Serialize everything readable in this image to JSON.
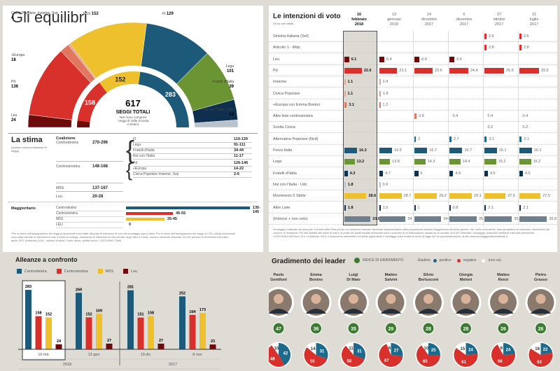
{
  "colors": {
    "fi": "#1d5a7a",
    "lega": "#6b9432",
    "fdi": "#0f2f4f",
    "noi": "#b8c2cc",
    "m5s": "#efc02e",
    "pd": "#d8302a",
    "europa": "#e0775e",
    "civica": "#eaa089",
    "leu": "#6e0a0a",
    "indecisi": "#6f7f8c",
    "green": "#3f7a34",
    "positive": "#1e6a8c",
    "negative": "#d8302a"
  },
  "hemicycle": {
    "title": "Gli equilibri",
    "total": "617",
    "total_label": "SEGGI TOTALI",
    "total_note_1": "Non sono compresi",
    "total_note_2": "i seggi di Valle d'Aosta",
    "total_note_3": "e Estero",
    "outer_labels": [
      {
        "name": "Civica Popolare, Insieme, Svp",
        "value": "4"
      },
      {
        "name": "+Europa",
        "value": "18"
      },
      {
        "name": "Pd",
        "value": "136"
      },
      {
        "name": "Leu",
        "value": "24"
      },
      {
        "name": "M5S",
        "value": "152"
      },
      {
        "name": "FI",
        "value": "129"
      },
      {
        "name": "Lega",
        "value": "101"
      },
      {
        "name": "Fratelli d'Italia",
        "value": "39"
      },
      {
        "name": "Noi con l'Italia - Udc",
        "value": "14"
      }
    ],
    "inner_labels": {
      "centrosinistra": "158",
      "m5s": "152",
      "centrodestra": "283"
    }
  },
  "stima": {
    "title": "La stima",
    "subtitle": "(numero minimo-massimo di seggi)",
    "coalizione_label": "Coalizione",
    "rows": [
      {
        "label": "Centrodestra",
        "range": "270-296",
        "parties": [
          {
            "name": "FI",
            "range": "119-139"
          },
          {
            "name": "Lega",
            "range": "91-111"
          },
          {
            "name": "Fratelli d'Italia",
            "range": "34-44"
          },
          {
            "name": "Noi con l'Italia",
            "range": "11-17"
          }
        ]
      },
      {
        "label": "Centrosinistra",
        "range": "148-168",
        "parties": [
          {
            "name": "Pd",
            "range": "126-146"
          },
          {
            "name": "+Europa",
            "range": "14-22"
          },
          {
            "name": "Civica Popolare Insieme, Svp",
            "range": "2-6"
          }
        ]
      },
      {
        "label": "M5S",
        "range": "137-167",
        "parties": []
      },
      {
        "label": "Leu",
        "range": "20-28",
        "parties": []
      }
    ],
    "maggioritario_label": "Maggioritario",
    "maggioritario": [
      {
        "label": "Centrodestra",
        "range": "135-145",
        "min": 135,
        "max": 145
      },
      {
        "label": "Centrosinistra",
        "range": "45-55",
        "min": 45,
        "max": 55
      },
      {
        "label": "M5S",
        "range": "35-45",
        "min": 35,
        "max": 45
      },
      {
        "label": "LEU",
        "range": "0",
        "min": 0,
        "max": 0
      }
    ],
    "footnote": "*Per la stima dell'assegnazione dei seggi proporzionali sono state utilizzate le intenzioni di voto del sondaggio sopra citato. Per le stime dell'assegnazione dei seggi nei 231 collegi uninominali sono state stimate le intenzioni di voto a livello di collegio, utilizzando le intenzioni di voto rilevate negli ultimi 10 mesi, numero interviste utilizzate: 50.000 periodo di riferimento interviste: aprile 2017 a febbraio 2018 - metodo di stima. Fonte: Ipsos, analisi autori - CATICANIC CAWI"
  },
  "chart_data": [
    {
      "type": "table",
      "title": "Le intenzioni di voto",
      "subtitle": "(% su voti validi)",
      "columns": [
        {
          "d": "16",
          "m": "febbraio",
          "y": "2018"
        },
        {
          "d": "13",
          "m": "gennaio",
          "y": "2018"
        },
        {
          "d": "14",
          "m": "dicembre",
          "y": "2017"
        },
        {
          "d": "6",
          "m": "dicembre",
          "y": "2017"
        },
        {
          "d": "27",
          "m": "ottobre",
          "y": "2017"
        },
        {
          "d": "21",
          "m": "luglio",
          "y": "2017"
        }
      ],
      "rows": [
        {
          "label": "Sinistra Italiana (SeI)",
          "color": "pd",
          "values": [
            null,
            null,
            null,
            null,
            2.6,
            2.6
          ]
        },
        {
          "label": "Articolo 1 - Mdp",
          "color": "pd",
          "values": [
            null,
            null,
            null,
            null,
            2.8,
            2.8
          ]
        },
        {
          "label": "Leu",
          "color": "leu",
          "values": [
            6.1,
            6.4,
            6.6,
            6.6,
            null,
            null
          ]
        },
        {
          "label": "Pd",
          "color": "pd",
          "values": [
            22.6,
            23.1,
            23.6,
            24.4,
            25.5,
            25.5
          ]
        },
        {
          "label": "Insieme",
          "color": "civica",
          "values": [
            1.1,
            1.4,
            null,
            null,
            null,
            null
          ]
        },
        {
          "label": "Civica Popolare",
          "color": "civica",
          "values": [
            1.1,
            1.8,
            null,
            null,
            null,
            null
          ]
        },
        {
          "label": "+Europa con Emma Bonino",
          "color": "europa",
          "values": [
            3.1,
            1.2,
            null,
            null,
            null,
            null
          ]
        },
        {
          "label": "Altre liste centrosinistra",
          "color": "europa",
          "values": [
            null,
            null,
            2.8,
            0.4,
            0.4,
            0.4
          ]
        },
        {
          "label": "Scelta Civica",
          "color": "europa",
          "values": [
            null,
            null,
            null,
            null,
            0.2,
            0.2
          ]
        },
        {
          "label": "Alternativa Popolare (Ncd)",
          "color": "positive",
          "values": [
            null,
            null,
            2.0,
            2.7,
            3.1,
            3.1
          ]
        },
        {
          "label": "Forza Italia",
          "color": "fi",
          "values": [
            16.3,
            16.5,
            16.7,
            16.7,
            16.1,
            16.1
          ]
        },
        {
          "label": "Lega",
          "color": "lega",
          "values": [
            13.2,
            13.8,
            14.3,
            14.4,
            15.2,
            15.2
          ]
        },
        {
          "label": "Fratelli d'Italia",
          "color": "fdi",
          "values": [
            4.3,
            4.7,
            5,
            4.9,
            4.5,
            4.5
          ]
        },
        {
          "label": "Noi con l'Italia - Udc",
          "color": "noi",
          "values": [
            1.8,
            0.9,
            null,
            null,
            null,
            null
          ]
        },
        {
          "label": "Movimento 5 Stelle",
          "color": "m5s",
          "values": [
            28.6,
            28.7,
            29.2,
            29.1,
            27.5,
            27.5
          ]
        },
        {
          "label": "Altre Liste",
          "color": "fdi",
          "values": [
            1.8,
            1.5,
            1,
            0.8,
            2.1,
            2.1
          ]
        },
        {
          "label": "(Indecisi + non voto)",
          "color": "indecisi",
          "values": [
            33.8,
            34,
            34.9,
            35.3,
            35.8,
            35.8
          ]
        }
      ],
      "footnote": "Sondaggio realizzato da Ipsos per Corriere della Sera presso un campione casuale nazionale rappresentativo della popolazione italiana maggiorenne secondo genere, età, livello di scolarità, area geografica di residenza, dimensione del comune di residenza. Per tutti stabiliti alle stime di voto e ai profili dei partiti risultati presentati sono il prodotto di un'elaborazione basata su un archivio di 8.007 interviste. Sondaggio realizzato mediante interviste telefoniche CATI/CAWI/CAMI tra il 13 e 14 febbraio 2018. Il documento informativo completo riguardante il sondaggio sarà inviato ai sensi di legge per la sua pubblicazione, al sito www.sondaggipoliticoelettorali.it."
    },
    {
      "type": "bar",
      "title": "Alleanze a confronto",
      "categories": [
        "16 feb",
        "13 gen",
        "19 dic",
        "8 nov"
      ],
      "year_groups": [
        {
          "label": "2018",
          "span": 2
        },
        {
          "label": "2017",
          "span": 2
        }
      ],
      "series": [
        {
          "name": "Centrodestra",
          "color": "fi",
          "values": [
            283,
            269,
            281,
            252
          ]
        },
        {
          "name": "Centrosinistra",
          "color": "pd",
          "values": [
            158,
            152,
            151,
            164
          ]
        },
        {
          "name": "M5S",
          "color": "m5s",
          "values": [
            152,
            169,
            158,
            173
          ]
        },
        {
          "name": "Leu",
          "color": "leu",
          "values": [
            24,
            27,
            27,
            23
          ]
        }
      ],
      "highlight": "16 feb",
      "ylim": [
        0,
        300
      ]
    },
    {
      "type": "pie",
      "title": "Gradimento dei leader",
      "legend": {
        "index": "INDICE DI GRADIMENTO",
        "giudizio": "Giudizio",
        "positive": "positivo",
        "negative": "negativo",
        "nonsa": "(non sa)"
      },
      "leaders": [
        {
          "first": "Paolo",
          "last": "Gentiloni",
          "index": 47,
          "positive": 42,
          "negative": 48,
          "nonsa": 10
        },
        {
          "first": "Emma",
          "last": "Bonino",
          "index": 36,
          "positive": 31,
          "negative": 55,
          "nonsa": 14
        },
        {
          "first": "Luigi",
          "last": "Di Maio",
          "index": 35,
          "positive": 31,
          "negative": 58,
          "nonsa": 11
        },
        {
          "first": "Matteo",
          "last": "Salvini",
          "index": 29,
          "positive": 27,
          "negative": 67,
          "nonsa": 6
        },
        {
          "first": "Silvio",
          "last": "Berlusconi",
          "index": 28,
          "positive": 25,
          "negative": 65,
          "nonsa": 10
        },
        {
          "first": "Giorgia",
          "last": "Meloni",
          "index": 28,
          "positive": 24,
          "negative": 61,
          "nonsa": 15
        },
        {
          "first": "Matteo",
          "last": "Renzi",
          "index": 26,
          "positive": 24,
          "negative": 68,
          "nonsa": 8
        },
        {
          "first": "Pietro",
          "last": "Grasso",
          "index": 26,
          "positive": 22,
          "negative": 62,
          "nonsa": 16
        }
      ]
    }
  ]
}
